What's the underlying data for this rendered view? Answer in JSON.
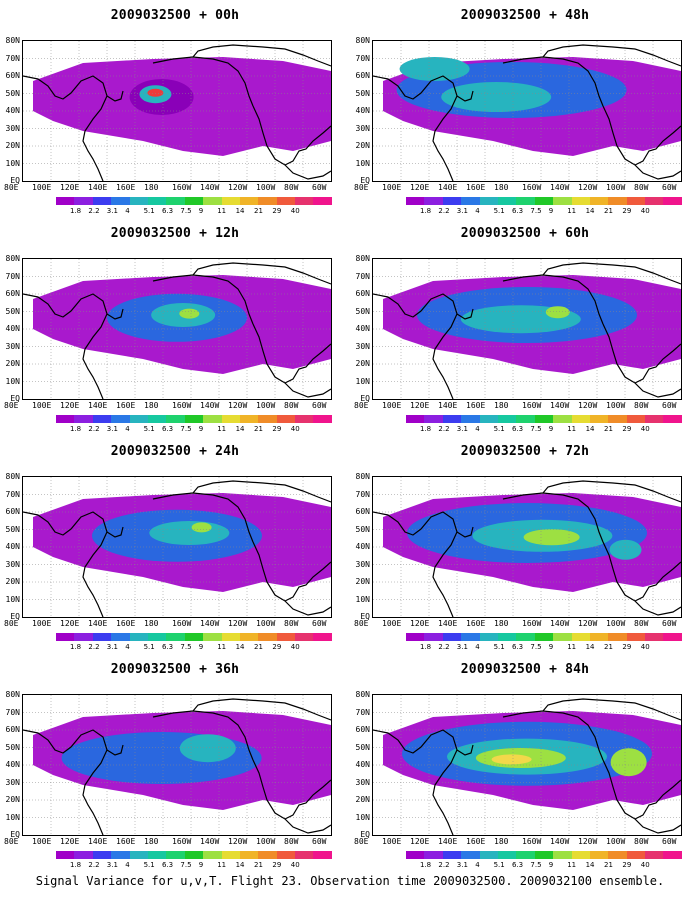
{
  "panels": [
    {
      "title": "2009032500 + 00h",
      "hotspots": [
        [
          0.45,
          0.4,
          32,
          18,
          "#8a00b8"
        ],
        [
          0.43,
          0.38,
          16,
          9,
          "#27b4bf"
        ],
        [
          0.43,
          0.37,
          8,
          4,
          "#ee3a3a"
        ]
      ]
    },
    {
      "title": "2009032500 + 48h",
      "hotspots": [
        [
          0.45,
          0.35,
          115,
          28,
          "#2a67df"
        ],
        [
          0.4,
          0.4,
          55,
          15,
          "#27b4bf"
        ],
        [
          0.2,
          0.2,
          35,
          12,
          "#27b4bf"
        ]
      ]
    },
    {
      "title": "2009032500 + 12h",
      "hotspots": [
        [
          0.5,
          0.42,
          70,
          24,
          "#2a67df"
        ],
        [
          0.52,
          0.4,
          32,
          12,
          "#27b4bf"
        ],
        [
          0.54,
          0.39,
          10,
          5,
          "#9de042"
        ]
      ]
    },
    {
      "title": "2009032500 + 60h",
      "hotspots": [
        [
          0.5,
          0.4,
          110,
          28,
          "#2a67df"
        ],
        [
          0.48,
          0.43,
          60,
          14,
          "#27b4bf"
        ],
        [
          0.6,
          0.38,
          12,
          6,
          "#9de042"
        ]
      ]
    },
    {
      "title": "2009032500 + 24h",
      "hotspots": [
        [
          0.5,
          0.42,
          85,
          26,
          "#2a67df"
        ],
        [
          0.54,
          0.4,
          40,
          12,
          "#27b4bf"
        ],
        [
          0.58,
          0.36,
          10,
          5,
          "#9de042"
        ]
      ]
    },
    {
      "title": "2009032500 + 72h",
      "hotspots": [
        [
          0.5,
          0.4,
          120,
          30,
          "#2a67df"
        ],
        [
          0.55,
          0.42,
          70,
          16,
          "#27b4bf"
        ],
        [
          0.58,
          0.43,
          28,
          8,
          "#9de042"
        ],
        [
          0.82,
          0.52,
          16,
          10,
          "#27b4bf"
        ]
      ]
    },
    {
      "title": "2009032500 + 36h",
      "hotspots": [
        [
          0.45,
          0.45,
          100,
          26,
          "#2a67df"
        ],
        [
          0.6,
          0.38,
          28,
          14,
          "#27b4bf"
        ]
      ]
    },
    {
      "title": "2009032500 + 84h",
      "hotspots": [
        [
          0.5,
          0.42,
          125,
          32,
          "#2a67df"
        ],
        [
          0.5,
          0.44,
          80,
          18,
          "#27b4bf"
        ],
        [
          0.48,
          0.45,
          45,
          10,
          "#9de042"
        ],
        [
          0.45,
          0.46,
          20,
          5,
          "#f2d84a"
        ],
        [
          0.83,
          0.48,
          18,
          14,
          "#9de042"
        ]
      ]
    }
  ],
  "lat_labels": [
    "80N",
    "70N",
    "60N",
    "50N",
    "40N",
    "30N",
    "20N",
    "10N",
    "EQ"
  ],
  "lon_labels": [
    "80E",
    "100E",
    "120E",
    "140E",
    "160E",
    "180",
    "160W",
    "140W",
    "120W",
    "100W",
    "80W",
    "60W"
  ],
  "colorbar": {
    "colors": [
      "#a000c8",
      "#8c1fe0",
      "#3c3cf0",
      "#2a78e6",
      "#27b4bf",
      "#16c8a0",
      "#1ed26e",
      "#20c828",
      "#9de042",
      "#e6dc32",
      "#f0b428",
      "#f08c28",
      "#f05a3c",
      "#e6326e",
      "#f0148c"
    ],
    "labels": [
      "1.8",
      "2.2",
      "3.1",
      "4",
      "5.1",
      "6.3",
      "7.5",
      "9",
      "11",
      "14",
      "21",
      "29",
      "40"
    ]
  },
  "caption": "Signal Variance for u,v,T. Flight 23. Observation time 2009032500. 2009032100 ensemble."
}
